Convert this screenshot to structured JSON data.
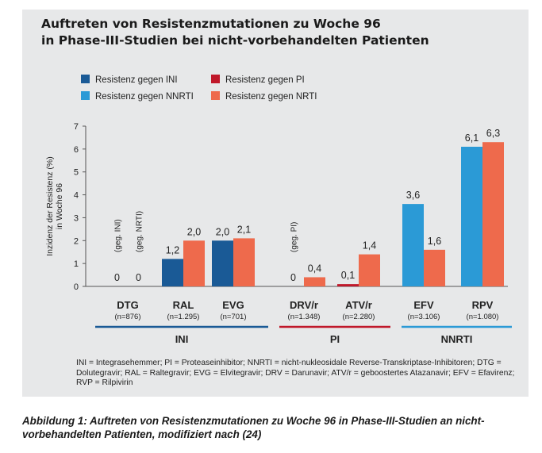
{
  "title": {
    "line1": "Auftreten von Resistenzmutationen zu Woche 96",
    "line2": "in Phase-III-Studien bei nicht-vorbehandelten Patienten"
  },
  "caption": "Abbildung 1: Auftreten von Resistenzmutationen zu Woche 96 in Phase-III-Studien an nicht-vorbehandelten Patienten, modifiziert nach (24)",
  "footnote": "INI = Integrasehemmer; PI = Proteaseinhibitor; NNRTI = nicht-nukleosidale Reverse-Transkriptase-Inhibitoren; DTG = Dolutegravir; RAL = Raltegravir; EVG = Elvitegravir; DRV = Darunavir; ATV/r = geboostertes Atazanavir; EFV = Efavirenz; RVP = Rilpivirin",
  "colors": {
    "ini": "#1a5a96",
    "pi": "#c0182a",
    "nnrti": "#2b9ad6",
    "nrti": "#ee6a4c",
    "panel": "#e7e8e9",
    "text": "#222222"
  },
  "chart_data": {
    "type": "bar",
    "ylabel": "Inzidenz der Resistenz (%) in Woche 96",
    "ylim": [
      0,
      7
    ],
    "yticks": [
      0,
      1,
      2,
      3,
      4,
      5,
      6,
      7
    ],
    "legend": [
      {
        "key": "ini",
        "label": "Resistenz gegen INI"
      },
      {
        "key": "pi",
        "label": "Resistenz gegen PI"
      },
      {
        "key": "nnrti",
        "label": "Resistenz gegen NNRTI"
      },
      {
        "key": "nrti",
        "label": "Resistenz gegen NRTI"
      }
    ],
    "categories": [
      {
        "name": "DTG",
        "n": "(n=876)",
        "group": "INI",
        "primary_class": "ini",
        "primary": 0,
        "primary_label": "0",
        "nrti": 0,
        "nrti_label": "0",
        "notes": [
          "(geg. INI)",
          "(geg. NRTI)"
        ]
      },
      {
        "name": "RAL",
        "n": "(n=1.295)",
        "group": "INI",
        "primary_class": "ini",
        "primary": 1.2,
        "primary_label": "1,2",
        "nrti": 2.0,
        "nrti_label": "2,0",
        "notes": []
      },
      {
        "name": "EVG",
        "n": "(n=701)",
        "group": "INI",
        "primary_class": "ini",
        "primary": 2.0,
        "primary_label": "2,0",
        "nrti": 2.1,
        "nrti_label": "2,1",
        "notes": []
      },
      {
        "name": "DRV/r",
        "n": "(n=1.348)",
        "group": "PI",
        "primary_class": "pi",
        "primary": 0,
        "primary_label": "0",
        "nrti": 0.4,
        "nrti_label": "0,4",
        "notes": [
          "(geg. PI)"
        ]
      },
      {
        "name": "ATV/r",
        "n": "(n=2.280)",
        "group": "PI",
        "primary_class": "pi",
        "primary": 0.1,
        "primary_label": "0,1",
        "nrti": 1.4,
        "nrti_label": "1,4",
        "notes": []
      },
      {
        "name": "EFV",
        "n": "(n=3.106)",
        "group": "NNRTI",
        "primary_class": "nnrti",
        "primary": 3.6,
        "primary_label": "3,6",
        "nrti": 1.6,
        "nrti_label": "1,6",
        "notes": []
      },
      {
        "name": "RPV",
        "n": "(n=1.080)",
        "group": "NNRTI",
        "primary_class": "nnrti",
        "primary": 6.1,
        "primary_label": "6,1",
        "nrti": 6.3,
        "nrti_label": "6,3",
        "notes": []
      }
    ],
    "groups": [
      {
        "label": "INI",
        "class": "ini",
        "members": [
          "DTG",
          "RAL",
          "EVG"
        ]
      },
      {
        "label": "PI",
        "class": "pi",
        "members": [
          "DRV/r",
          "ATV/r"
        ]
      },
      {
        "label": "NNRTI",
        "class": "nnrti",
        "members": [
          "EFV",
          "RPV"
        ]
      }
    ]
  }
}
